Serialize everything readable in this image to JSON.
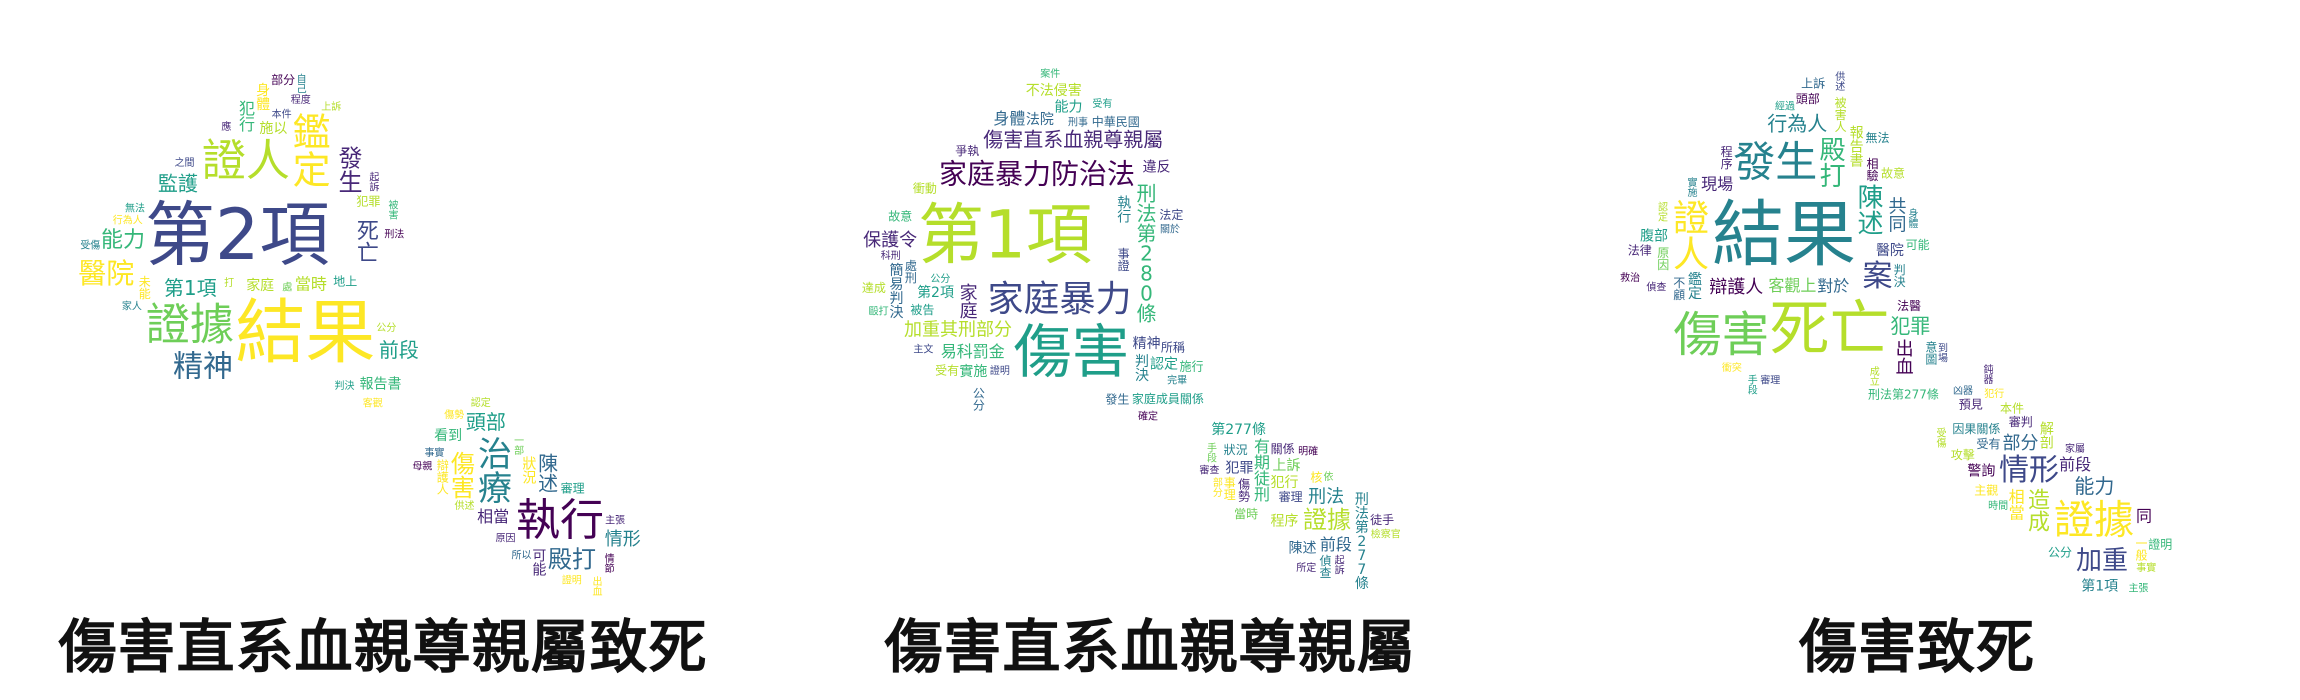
{
  "palette": [
    "#440154",
    "#482878",
    "#3e4989",
    "#31688e",
    "#26828e",
    "#1f9e89",
    "#35b779",
    "#6ece58",
    "#b5de2b",
    "#fde725"
  ],
  "shape": "gavel",
  "clouds": [
    {
      "caption": "傷害直系血親尊親屬致死",
      "words": [
        [
          "第2項",
          70
        ],
        [
          "結果",
          70
        ],
        [
          "證據",
          44
        ],
        [
          "鑑定",
          38
        ],
        [
          "治療",
          34
        ],
        [
          "證人",
          44
        ],
        [
          "執行",
          44
        ],
        [
          "精神",
          30
        ],
        [
          "醫院",
          28
        ],
        [
          "死亡",
          22
        ],
        [
          "殿打",
          24
        ],
        [
          "發生",
          24
        ],
        [
          "傷害",
          24
        ],
        [
          "陳述",
          20
        ],
        [
          "第1項",
          20
        ],
        [
          "能力",
          22
        ],
        [
          "頭部",
          20
        ],
        [
          "前段",
          20
        ],
        [
          "監護",
          20
        ],
        [
          "情形",
          18
        ],
        [
          "犯行",
          16
        ],
        [
          "相當",
          16
        ],
        [
          "當時",
          16
        ],
        [
          "施以",
          14
        ],
        [
          "可能",
          14
        ],
        [
          "家庭",
          14
        ],
        [
          "看到",
          14
        ],
        [
          "報告書",
          14
        ],
        [
          "身體",
          14
        ],
        [
          "狀況",
          14
        ],
        [
          "地上",
          12
        ],
        [
          "辯護人",
          12
        ],
        [
          "犯罪",
          12
        ],
        [
          "部分",
          12
        ],
        [
          "審理",
          12
        ],
        [
          "未能",
          12
        ],
        [
          "一部",
          10
        ],
        [
          "公分",
          10
        ],
        [
          "之間",
          10
        ],
        [
          "所以",
          10
        ],
        [
          "行為人",
          10
        ],
        [
          "事實",
          10
        ],
        [
          "刑法",
          10
        ],
        [
          "自己",
          10
        ],
        [
          "主張",
          10
        ],
        [
          "起訴",
          10
        ],
        [
          "認定",
          10
        ],
        [
          "判決",
          10
        ],
        [
          "應",
          10
        ],
        [
          "原因",
          10
        ],
        [
          "打",
          10
        ],
        [
          "傷勢",
          10
        ],
        [
          "客觀",
          10
        ],
        [
          "本件",
          10
        ],
        [
          "情節",
          10
        ],
        [
          "無法",
          10
        ],
        [
          "供述",
          10
        ],
        [
          "處",
          10
        ],
        [
          "上訴",
          10
        ],
        [
          "證明",
          10
        ],
        [
          "家人",
          10
        ],
        [
          "母親",
          10
        ],
        [
          "被害",
          10
        ],
        [
          "受傷",
          10
        ],
        [
          "出血",
          10
        ],
        [
          "程度",
          10
        ]
      ]
    },
    {
      "caption": "傷害直系血親尊親屬",
      "words": [
        [
          "第1項",
          66
        ],
        [
          "傷害",
          58
        ],
        [
          "家庭暴力",
          36
        ],
        [
          "家庭暴力防治法",
          28
        ],
        [
          "證據",
          24
        ],
        [
          "刑法第280條",
          20
        ],
        [
          "加重其刑部分",
          18
        ],
        [
          "傷害直系血親尊親屬",
          20
        ],
        [
          "保護令",
          18
        ],
        [
          "刑法",
          18
        ],
        [
          "有期徒刑",
          16
        ],
        [
          "易科罰金",
          16
        ],
        [
          "身體",
          16
        ],
        [
          "家庭",
          18
        ],
        [
          "第2項",
          14
        ],
        [
          "前段",
          16
        ],
        [
          "犯罪",
          14
        ],
        [
          "精神",
          14
        ],
        [
          "法院",
          14
        ],
        [
          "陳述",
          14
        ],
        [
          "執行",
          14
        ],
        [
          "上訴",
          14
        ],
        [
          "判決",
          14
        ],
        [
          "不法侵害",
          14
        ],
        [
          "刑法第277條",
          14
        ],
        [
          "家庭成員關係",
          12
        ],
        [
          "偵查",
          12
        ],
        [
          "簡易判決",
          14
        ],
        [
          "第277條",
          14
        ],
        [
          "實施",
          14
        ],
        [
          "能力",
          14
        ],
        [
          "程序",
          14
        ],
        [
          "中華民國",
          12
        ],
        [
          "違反",
          14
        ],
        [
          "犯行",
          14
        ],
        [
          "認定",
          14
        ],
        [
          "傷勢",
          12
        ],
        [
          "事證",
          12
        ],
        [
          "爭執",
          12
        ],
        [
          "審理",
          12
        ],
        [
          "衝動",
          12
        ],
        [
          "狀況",
          12
        ],
        [
          "公分",
          12
        ],
        [
          "被告",
          12
        ],
        [
          "案件",
          10
        ],
        [
          "起訴",
          10
        ],
        [
          "證明",
          10
        ],
        [
          "沒有第1條",
          12
        ],
        [
          "故意",
          12
        ],
        [
          "關係",
          12
        ],
        [
          "明確",
          10
        ],
        [
          "完畢",
          10
        ],
        [
          "施行",
          12
        ],
        [
          "處刑",
          12
        ],
        [
          "核",
          12
        ],
        [
          "受有",
          12
        ],
        [
          "事理",
          12
        ],
        [
          "發生",
          12
        ],
        [
          "達成",
          12
        ],
        [
          "公分",
          10
        ],
        [
          "徒手",
          12
        ],
        [
          "依",
          10
        ],
        [
          "法定",
          12
        ],
        [
          "主文",
          10
        ],
        [
          "審查",
          10
        ],
        [
          "關於",
          10
        ],
        [
          "受有",
          10
        ],
        [
          "當時",
          12
        ],
        [
          "所稱",
          12
        ],
        [
          "所定",
          10
        ],
        [
          "科刑",
          10
        ],
        [
          "部分",
          10
        ],
        [
          "確定",
          10
        ],
        [
          "刑事",
          10
        ],
        [
          "檢察官",
          10
        ],
        [
          "毆打",
          10
        ],
        [
          "手段",
          10
        ]
      ]
    },
    {
      "caption": "傷害致死",
      "words": [
        [
          "結果",
          72
        ],
        [
          "死亡",
          60
        ],
        [
          "傷害",
          48
        ],
        [
          "證據",
          40
        ],
        [
          "發生",
          42
        ],
        [
          "證人",
          36
        ],
        [
          "情形",
          30
        ],
        [
          "殿打",
          26
        ],
        [
          "加重",
          26
        ],
        [
          "案",
          30
        ],
        [
          "陳述",
          26
        ],
        [
          "造成",
          22
        ],
        [
          "共同",
          18
        ],
        [
          "犯罪",
          20
        ],
        [
          "行為人",
          20
        ],
        [
          "部分",
          18
        ],
        [
          "能力",
          20
        ],
        [
          "出血",
          18
        ],
        [
          "辯護人",
          18
        ],
        [
          "前段",
          16
        ],
        [
          "報告書",
          14
        ],
        [
          "客觀上",
          16
        ],
        [
          "相當",
          16
        ],
        [
          "解剖",
          14
        ],
        [
          "醫院",
          14
        ],
        [
          "對於",
          16
        ],
        [
          "腹部",
          14
        ],
        [
          "第1項",
          14
        ],
        [
          "鑑定",
          14
        ],
        [
          "現場",
          16
        ],
        [
          "警詢",
          14
        ],
        [
          "刑法第277條",
          12
        ],
        [
          "程序",
          12
        ],
        [
          "一般",
          12
        ],
        [
          "相驗",
          12
        ],
        [
          "主觀",
          12
        ],
        [
          "同",
          16
        ],
        [
          "法醫",
          12
        ],
        [
          "頭部",
          12
        ],
        [
          "公分",
          12
        ],
        [
          "不顧",
          12
        ],
        [
          "受有",
          12
        ],
        [
          "判決",
          12
        ],
        [
          "上訴",
          12
        ],
        [
          "證明",
          12
        ],
        [
          "原因",
          12
        ],
        [
          "審判",
          12
        ],
        [
          "可能",
          12
        ],
        [
          "被害人",
          12
        ],
        [
          "因果關係",
          12
        ],
        [
          "故意",
          12
        ],
        [
          "本件",
          12
        ],
        [
          "意圖",
          12
        ],
        [
          "法律",
          12
        ],
        [
          "預見",
          12
        ],
        [
          "無法",
          12
        ],
        [
          "攻擊",
          12
        ],
        [
          "審理",
          10
        ],
        [
          "偵查",
          10
        ],
        [
          "家屬",
          10
        ],
        [
          "認定",
          10
        ],
        [
          "時間",
          10
        ],
        [
          "手段",
          10
        ],
        [
          "經過",
          10
        ],
        [
          "事實",
          10
        ],
        [
          "實施",
          10
        ],
        [
          "犯行",
          10
        ],
        [
          "成立",
          10
        ],
        [
          "供述",
          10
        ],
        [
          "主張",
          10
        ],
        [
          "身體",
          10
        ],
        [
          "受傷",
          10
        ],
        [
          "到場",
          10
        ],
        [
          "救治",
          10
        ],
        [
          "凶器",
          10
        ],
        [
          "衝突",
          10
        ],
        [
          "鈍器",
          10
        ]
      ]
    }
  ]
}
